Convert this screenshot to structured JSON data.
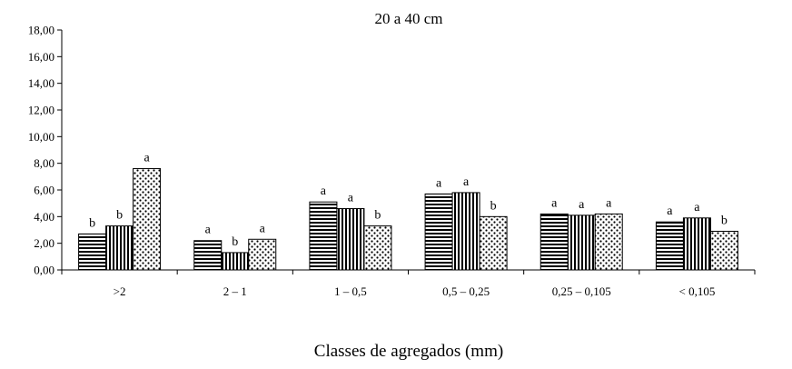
{
  "chart_data": {
    "type": "bar",
    "title": "20 a 40 cm",
    "xlabel": "Classes de agregados (mm)",
    "ylabel": "",
    "ylim": [
      0,
      18
    ],
    "yticks": [
      "0,00",
      "2,00",
      "4,00",
      "6,00",
      "8,00",
      "10,00",
      "12,00",
      "14,00",
      "16,00",
      "18,00"
    ],
    "grid": false,
    "legend": "none",
    "categories": [
      ">2",
      "2 – 1",
      "1 – 0,5",
      "0,5 – 0,25",
      "0,25 – 0,105",
      "< 0,105"
    ],
    "series": [
      {
        "pattern": "horizontal-stripes",
        "values": [
          2.7,
          2.2,
          5.1,
          5.7,
          4.2,
          3.6
        ],
        "labels": [
          "b",
          "a",
          "a",
          "a",
          "a",
          "a"
        ]
      },
      {
        "pattern": "vertical-stripes",
        "values": [
          3.3,
          1.3,
          4.6,
          5.8,
          4.1,
          3.9
        ],
        "labels": [
          "b",
          "b",
          "a",
          "a",
          "a",
          "a"
        ]
      },
      {
        "pattern": "dots",
        "values": [
          7.6,
          2.3,
          3.3,
          4.0,
          4.2,
          2.9
        ],
        "labels": [
          "a",
          "a",
          "b",
          "b",
          "a",
          "b"
        ]
      }
    ]
  }
}
